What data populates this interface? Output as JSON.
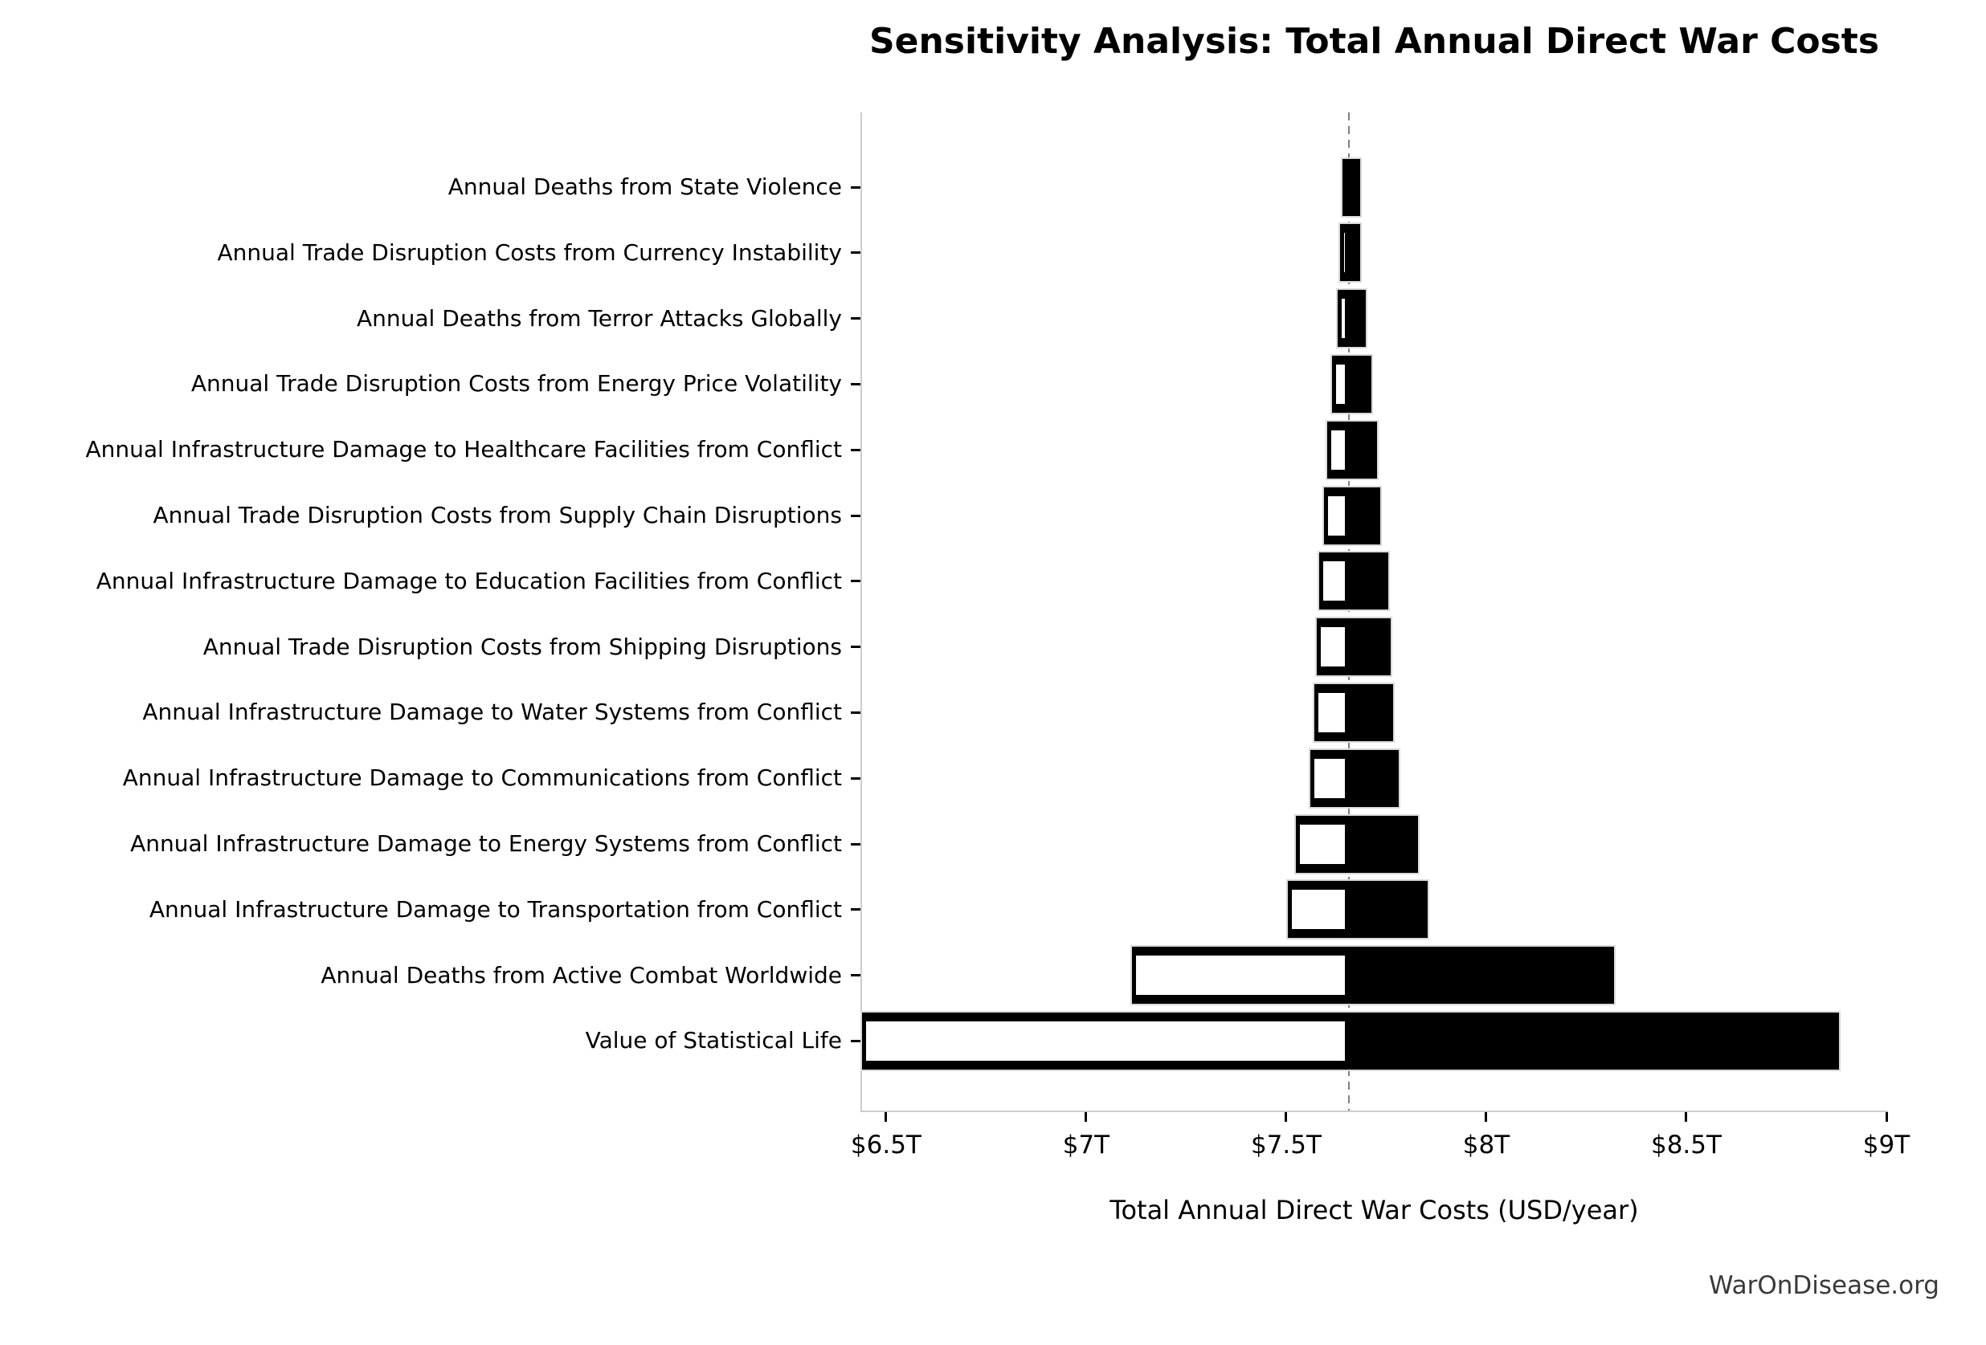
{
  "figure": {
    "title": "Sensitivity Analysis: Total Annual Direct War Costs",
    "footer": "WarOnDisease.org"
  },
  "chart_data": {
    "type": "bar",
    "subtype": "tornado-horizontal",
    "title": "Sensitivity Analysis: Total Annual Direct War Costs",
    "xlabel": "Total Annual Direct War Costs (USD/year)",
    "unit": "trillion USD/year",
    "baseline": 7.657,
    "xlim": [
      6.44,
      9.0
    ],
    "grid": false,
    "legend": "none",
    "x_ticks": [
      {
        "value": 6.5,
        "label": "$6.5T"
      },
      {
        "value": 7.0,
        "label": "$7T"
      },
      {
        "value": 7.5,
        "label": "$7.5T"
      },
      {
        "value": 8.0,
        "label": "$8T"
      },
      {
        "value": 8.5,
        "label": "$8.5T"
      },
      {
        "value": 9.0,
        "label": "$9T"
      }
    ],
    "bars": [
      {
        "label": "Annual Deaths from State Violence",
        "low": 7.641,
        "high": 7.684
      },
      {
        "label": "Annual Trade Disruption Costs from Currency Instability",
        "low": 7.634,
        "high": 7.684
      },
      {
        "label": "Annual Deaths from Terror Attacks Globally",
        "low": 7.628,
        "high": 7.699
      },
      {
        "label": "Annual Trade Disruption Costs from Energy Price Volatility",
        "low": 7.614,
        "high": 7.712
      },
      {
        "label": "Annual Infrastructure Damage to Healthcare Facilities from Conflict",
        "low": 7.602,
        "high": 7.728
      },
      {
        "label": "Annual Trade Disruption Costs from Supply Chain Disruptions",
        "low": 7.595,
        "high": 7.736
      },
      {
        "label": "Annual Infrastructure Damage to Education Facilities from Conflict",
        "low": 7.582,
        "high": 7.755
      },
      {
        "label": "Annual Trade Disruption Costs from Shipping Disruptions",
        "low": 7.576,
        "high": 7.761
      },
      {
        "label": "Annual Infrastructure Damage to Water Systems from Conflict",
        "low": 7.57,
        "high": 7.768
      },
      {
        "label": "Annual Infrastructure Damage to Communications from Conflict",
        "low": 7.56,
        "high": 7.781
      },
      {
        "label": "Annual Infrastructure Damage to Energy Systems from Conflict",
        "low": 7.525,
        "high": 7.829
      },
      {
        "label": "Annual Infrastructure Damage to Transportation from Conflict",
        "low": 7.504,
        "high": 7.854
      },
      {
        "label": "Annual Deaths from Active Combat Worldwide",
        "low": 7.114,
        "high": 8.32
      },
      {
        "label": "Value of Statistical Life",
        "low": 6.437,
        "high": 8.882
      }
    ],
    "colors": {
      "high_bar_fill": "#000000",
      "low_bar_fill": "#ffffff",
      "low_bar_border": "#000000",
      "high_bar_edge": "#dadada",
      "baseline_line": "#7f7f7f",
      "spine": "#cccccc",
      "text": "#000000",
      "footer_text": "#3a3a3a"
    }
  }
}
